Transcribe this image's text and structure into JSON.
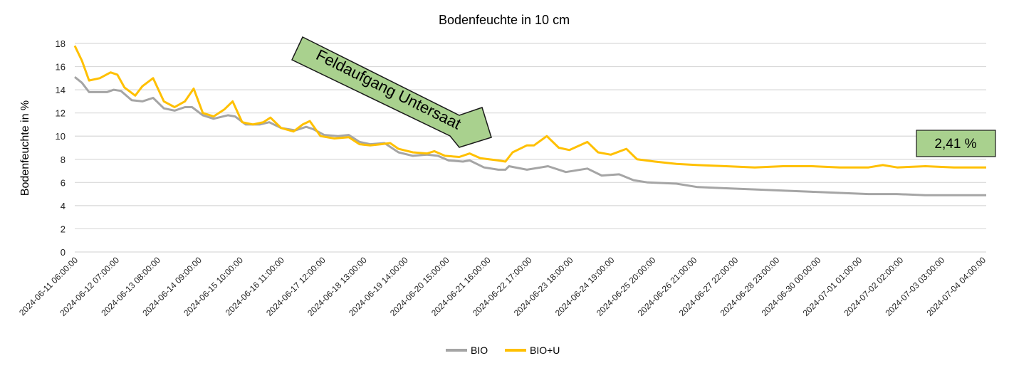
{
  "chart_data": {
    "type": "line",
    "title": "Bodenfeuchte in 10 cm",
    "xlabel": "",
    "ylabel": "Bodenfeuchte in %",
    "ylim": [
      0,
      18
    ],
    "yticks": [
      0,
      2,
      4,
      6,
      8,
      10,
      12,
      14,
      16,
      18
    ],
    "x_unit": "days since 2024-06-11 06:00:00",
    "xlim": [
      0,
      22.92
    ],
    "grid": true,
    "legend_position": "bottom",
    "xtick_labels": [
      "2024-06-11 06:00:00",
      "2024-06-12 07:00:00",
      "2024-06-13 08:00:00",
      "2024-06-14 09:00:00",
      "2024-06-15 10:00:00",
      "2024-06-16 11:00:00",
      "2024-06-17 12:00:00",
      "2024-06-18 13:00:00",
      "2024-06-19 14:00:00",
      "2024-06-20 15:00:00",
      "2024-06-21 16:00:00",
      "2024-06-22 17:00:00",
      "2024-06-23 18:00:00",
      "2024-06-24 19:00:00",
      "2024-06-25 20:00:00",
      "2024-06-26 21:00:00",
      "2024-06-27 22:00:00",
      "2024-06-28 23:00:00",
      "2024-06-30 00:00:00",
      "2024-07-01 01:00:00",
      "2024-07-02 02:00:00",
      "2024-07-03 03:00:00",
      "2024-07-04 04:00:00"
    ],
    "series": [
      {
        "name": "BIO",
        "color": "#a5a5a5",
        "x": [
          0,
          0.18,
          0.36,
          0.81,
          0.98,
          1.16,
          1.43,
          1.7,
          1.97,
          2.24,
          2.51,
          2.77,
          2.95,
          3.22,
          3.49,
          3.85,
          4.03,
          4.3,
          4.65,
          4.89,
          5.19,
          5.55,
          5.82,
          6.0,
          6.27,
          6.62,
          6.89,
          7.16,
          7.43,
          7.79,
          8.14,
          8.5,
          8.86,
          9.13,
          9.4,
          9.76,
          9.93,
          10.29,
          10.65,
          10.83,
          10.92,
          11.37,
          11.9,
          12.35,
          12.89,
          13.25,
          13.69,
          14.05,
          14.41,
          15.13,
          15.66,
          16.38,
          17.1,
          17.81,
          18.53,
          19.24,
          19.96,
          20.67,
          21.39,
          22.11,
          22.92
        ],
        "y": [
          15.1,
          14.6,
          13.8,
          13.8,
          14.0,
          13.9,
          13.1,
          13.0,
          13.3,
          12.4,
          12.2,
          12.5,
          12.5,
          11.8,
          11.5,
          11.8,
          11.7,
          11.0,
          11.0,
          11.2,
          10.7,
          10.5,
          10.8,
          10.6,
          10.1,
          10.0,
          10.1,
          9.5,
          9.3,
          9.4,
          8.6,
          8.3,
          8.4,
          8.3,
          7.9,
          7.8,
          7.9,
          7.3,
          7.1,
          7.1,
          7.4,
          7.1,
          7.4,
          6.9,
          7.2,
          6.6,
          6.7,
          6.2,
          6.0,
          5.9,
          5.6,
          5.5,
          5.4,
          5.3,
          5.2,
          5.1,
          5.0,
          5.0,
          4.9,
          4.9,
          4.9
        ]
      },
      {
        "name": "BIO+U",
        "color": "#ffc000",
        "x": [
          0,
          0.18,
          0.36,
          0.63,
          0.9,
          1.07,
          1.25,
          1.52,
          1.7,
          1.97,
          2.24,
          2.51,
          2.77,
          2.99,
          3.22,
          3.49,
          3.76,
          3.97,
          4.21,
          4.48,
          4.74,
          4.92,
          5.19,
          5.5,
          5.73,
          5.91,
          6.18,
          6.53,
          6.89,
          7.16,
          7.43,
          7.7,
          7.93,
          8.14,
          8.5,
          8.86,
          9.04,
          9.31,
          9.67,
          9.93,
          10.2,
          10.65,
          10.83,
          11.01,
          11.37,
          11.55,
          11.87,
          12.17,
          12.44,
          12.89,
          13.16,
          13.48,
          13.87,
          14.14,
          14.59,
          15.13,
          15.66,
          16.38,
          17.1,
          17.81,
          18.53,
          19.24,
          19.96,
          20.32,
          20.68,
          21.39,
          22.11,
          22.92
        ],
        "y": [
          17.8,
          16.5,
          14.8,
          15.0,
          15.5,
          15.3,
          14.2,
          13.5,
          14.3,
          15.0,
          13.0,
          12.5,
          13.0,
          14.1,
          12.0,
          11.7,
          12.3,
          13.0,
          11.2,
          11.0,
          11.2,
          11.6,
          10.7,
          10.4,
          11.0,
          11.3,
          10.0,
          9.8,
          9.9,
          9.3,
          9.2,
          9.3,
          9.4,
          8.9,
          8.6,
          8.5,
          8.7,
          8.3,
          8.2,
          8.5,
          8.1,
          7.9,
          7.8,
          8.6,
          9.2,
          9.2,
          10.0,
          9.0,
          8.8,
          9.5,
          8.6,
          8.4,
          8.9,
          8.0,
          7.8,
          7.6,
          7.5,
          7.4,
          7.3,
          7.4,
          7.4,
          7.3,
          7.3,
          7.5,
          7.3,
          7.4,
          7.3,
          7.3
        ]
      }
    ],
    "annotations": {
      "arrow_text": "Feldaufgang Untersaat",
      "value_box": "2,41 %",
      "annotation_fill": "#a9d18e"
    }
  }
}
